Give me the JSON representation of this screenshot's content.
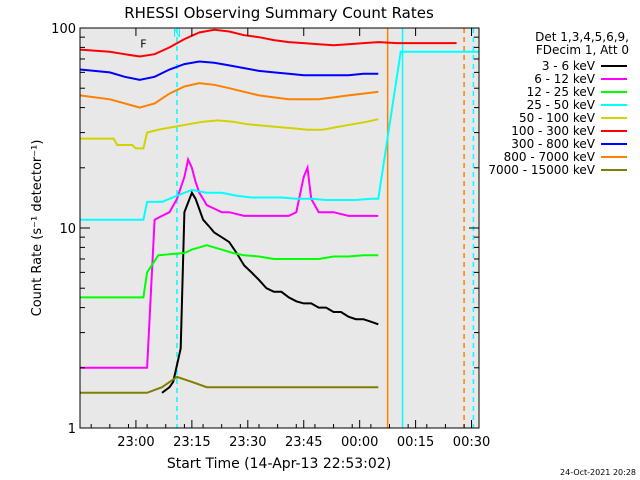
{
  "chart_data": {
    "type": "line",
    "title": "RHESSI Observing Summary Count Rates",
    "xlabel": "Start Time (14-Apr-13 22:53:02)",
    "ylabel": "Count Rate (s⁻¹ detector⁻¹)",
    "yscale": "log",
    "ylim": [
      1,
      100
    ],
    "xlim_minutes": [
      -8,
      99
    ],
    "xtick_labels": [
      "23:00",
      "23:15",
      "23:30",
      "23:45",
      "00:00",
      "00:15",
      "00:30"
    ],
    "xtick_minutes": [
      7,
      22,
      37,
      52,
      67,
      82,
      97
    ],
    "ytick_labels": [
      "1",
      "10",
      "100"
    ],
    "ytick_values": [
      1,
      10,
      100
    ],
    "legend_header": [
      "Det 1,3,4,5,6,9,",
      "FDecim 1, Att 0"
    ],
    "legend_placement": "right",
    "series": [
      {
        "name": "3 - 6 keV",
        "color": "#000000",
        "x": [
          14,
          16,
          17,
          19,
          20,
          22,
          23,
          25,
          27,
          28,
          30,
          32,
          34,
          36,
          38,
          40,
          42,
          44,
          46,
          48,
          50,
          52,
          54,
          56,
          58,
          60,
          62,
          64,
          66,
          68,
          70,
          72
        ],
        "y": [
          1.5,
          1.6,
          1.7,
          2.5,
          12,
          15,
          14,
          11,
          10,
          9.5,
          9,
          8.5,
          7.5,
          6.5,
          6,
          5.5,
          5.0,
          4.8,
          4.8,
          4.5,
          4.3,
          4.2,
          4.2,
          4.0,
          4.0,
          3.8,
          3.8,
          3.6,
          3.5,
          3.5,
          3.4,
          3.3
        ]
      },
      {
        "name": "6 - 12 keV",
        "color": "#ff00ff",
        "x": [
          -8,
          10,
          12,
          14,
          16,
          18,
          20,
          21,
          22,
          23,
          24,
          25,
          26,
          28,
          30,
          32,
          36,
          40,
          44,
          48,
          50,
          52,
          53,
          54,
          56,
          60,
          64,
          68,
          72
        ],
        "y": [
          2,
          2,
          11,
          11.5,
          12,
          14,
          18,
          22,
          20,
          17,
          15,
          14,
          13,
          12.5,
          12,
          12,
          11.5,
          11.5,
          11.5,
          11.5,
          12,
          18,
          20,
          14,
          12,
          12,
          11.5,
          11.5,
          11.5
        ]
      },
      {
        "name": "12 - 25 keV",
        "color": "#00ff00",
        "x": [
          -8,
          9,
          10,
          13,
          16,
          20,
          22,
          24,
          26,
          28,
          30,
          33,
          36,
          40,
          44,
          48,
          52,
          56,
          60,
          64,
          68,
          72
        ],
        "y": [
          4.5,
          4.5,
          6,
          7.3,
          7.4,
          7.5,
          7.8,
          8.0,
          8.2,
          8.0,
          7.8,
          7.5,
          7.3,
          7.2,
          7.0,
          7.0,
          7.0,
          7.0,
          7.2,
          7.2,
          7.3,
          7.3
        ]
      },
      {
        "name": "25 - 50 keV",
        "color": "#00ffff",
        "x": [
          -8,
          9,
          10,
          14,
          18,
          20,
          22,
          26,
          30,
          34,
          38,
          42,
          46,
          50,
          54,
          58,
          62,
          66,
          70,
          72,
          78,
          99
        ],
        "y": [
          11,
          11,
          13.5,
          13.5,
          14.5,
          15,
          15.5,
          15,
          15,
          14.5,
          14.2,
          14.2,
          14.2,
          14,
          14,
          13.8,
          13.8,
          13.8,
          14,
          14,
          76,
          76
        ]
      },
      {
        "name": "50 - 100 keV",
        "color": "#d2d200",
        "x": [
          -8,
          1,
          2,
          6,
          7,
          9,
          10,
          13,
          17,
          21,
          25,
          29,
          33,
          37,
          41,
          45,
          49,
          53,
          57,
          61,
          65,
          69,
          72
        ],
        "y": [
          28,
          28,
          26,
          26,
          25,
          25,
          30,
          31,
          32,
          33,
          34,
          34.5,
          34,
          33,
          32.5,
          32,
          31.5,
          31,
          31,
          32,
          33,
          34,
          35
        ]
      },
      {
        "name": "100 - 300 keV",
        "color": "#ff0000",
        "x": [
          -8,
          0,
          4,
          8,
          12,
          16,
          20,
          24,
          28,
          32,
          36,
          40,
          44,
          48,
          52,
          56,
          60,
          64,
          68,
          72,
          77,
          93
        ],
        "y": [
          78,
          76,
          74,
          72,
          74,
          80,
          88,
          95,
          98,
          96,
          92,
          90,
          87,
          85,
          84,
          83,
          82,
          83,
          84,
          85,
          84,
          84
        ]
      },
      {
        "name": "300 - 800 keV",
        "color": "#0000ff",
        "x": [
          -8,
          0,
          4,
          8,
          12,
          16,
          20,
          24,
          28,
          32,
          36,
          40,
          44,
          48,
          52,
          56,
          60,
          64,
          68,
          72
        ],
        "y": [
          62,
          60,
          57,
          55,
          57,
          62,
          66,
          68,
          67,
          65,
          63,
          61,
          60,
          59,
          58,
          58,
          58,
          58,
          59,
          59
        ]
      },
      {
        "name": "800 - 7000 keV",
        "color": "#ff8000",
        "x": [
          -8,
          0,
          4,
          8,
          12,
          16,
          20,
          24,
          28,
          32,
          36,
          40,
          44,
          48,
          52,
          56,
          60,
          64,
          68,
          72
        ],
        "y": [
          46,
          44,
          42,
          40,
          42,
          47,
          51,
          53,
          52,
          50,
          48,
          46,
          45,
          44,
          44,
          44,
          45,
          46,
          47,
          48
        ]
      },
      {
        "name": "7000 - 15000 keV",
        "color": "#808000",
        "x": [
          -8,
          10,
          14,
          18,
          22,
          26,
          30,
          34,
          38,
          42,
          46,
          50,
          54,
          58,
          62,
          66,
          72
        ],
        "y": [
          1.5,
          1.5,
          1.6,
          1.8,
          1.7,
          1.6,
          1.6,
          1.6,
          1.6,
          1.6,
          1.6,
          1.6,
          1.6,
          1.6,
          1.6,
          1.6,
          1.6
        ]
      }
    ],
    "annotations": [
      {
        "text": "F",
        "x_minutes": 9,
        "y_value": 80,
        "color": "#000000"
      },
      {
        "text": "N",
        "x_minutes": 18,
        "y_value": 90,
        "color": "#00ffff"
      }
    ],
    "vertical_markers": [
      {
        "x_minutes": 74.5,
        "style": "solid",
        "color": "#ff8000"
      },
      {
        "x_minutes": 78.5,
        "style": "solid",
        "color": "#00ffff"
      },
      {
        "x_minutes": 95,
        "style": "dashed",
        "color": "#ff8000"
      },
      {
        "x_minutes": 97.5,
        "style": "dashed",
        "color": "#00ffff"
      },
      {
        "x_minutes": 18,
        "style": "dashed",
        "color": "#00ffff"
      }
    ],
    "background_color": "#e8e8e8",
    "footer_timestamp": "24-Oct-2021 20:28"
  }
}
